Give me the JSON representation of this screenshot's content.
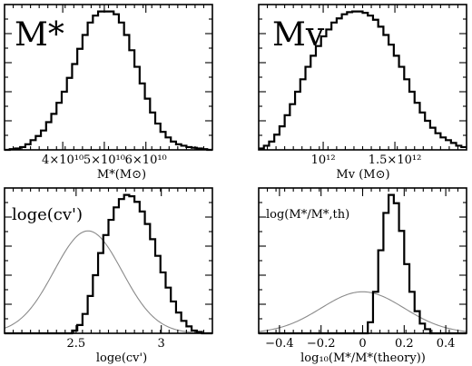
{
  "chart_data": [
    {
      "type": "histogram",
      "title": "M*",
      "xlabel": "M*(M⊙)",
      "xlim": [
        26000000000.0,
        76000000000.0
      ],
      "ylim": [
        0,
        1.05
      ],
      "xtick_values": [
        40000000000.0,
        50000000000.0,
        60000000000.0
      ],
      "xtick_labels": [
        "4×10¹⁰",
        "5×10¹⁰",
        "6×10¹⁰"
      ],
      "bins": {
        "start": 26000000000.0,
        "width": 1250000000.0,
        "heights": [
          0.0,
          0.005,
          0.01,
          0.02,
          0.04,
          0.07,
          0.1,
          0.14,
          0.2,
          0.26,
          0.34,
          0.42,
          0.52,
          0.62,
          0.73,
          0.83,
          0.92,
          0.97,
          1.0,
          1.0,
          1.0,
          0.98,
          0.92,
          0.83,
          0.72,
          0.6,
          0.48,
          0.37,
          0.27,
          0.19,
          0.13,
          0.09,
          0.06,
          0.04,
          0.03,
          0.02,
          0.015,
          0.01,
          0.005,
          0.0
        ]
      }
    },
    {
      "type": "histogram",
      "title": "Mv",
      "xlabel": "Mv (M⊙)",
      "xlim": [
        550000000000.0,
        2000000000000.0
      ],
      "ylim": [
        0,
        1.05
      ],
      "xtick_values": [
        1000000000000.0,
        1500000000000.0
      ],
      "xtick_labels": [
        "10¹²",
        "1.5×10¹²"
      ],
      "bins": {
        "start": 550000000000.0,
        "width": 36250000000.0,
        "heights": [
          0.01,
          0.03,
          0.06,
          0.11,
          0.17,
          0.25,
          0.33,
          0.42,
          0.51,
          0.6,
          0.68,
          0.75,
          0.82,
          0.87,
          0.92,
          0.95,
          0.98,
          0.995,
          1.0,
          1.0,
          0.99,
          0.97,
          0.94,
          0.89,
          0.83,
          0.76,
          0.68,
          0.6,
          0.51,
          0.42,
          0.34,
          0.27,
          0.21,
          0.16,
          0.12,
          0.09,
          0.07,
          0.05,
          0.03,
          0.02
        ]
      }
    },
    {
      "type": "histogram",
      "title": "loge(cv')",
      "xlabel": "loge(cv')",
      "xlim": [
        2.08,
        3.3
      ],
      "ylim": [
        0,
        1.05
      ],
      "xtick_values": [
        2.5,
        3.0
      ],
      "xtick_labels": [
        "2.5",
        "3"
      ],
      "bins": {
        "start": 2.08,
        "width": 0.0305,
        "heights": [
          0.0,
          0.0,
          0.0,
          0.0,
          0.0,
          0.0,
          0.0,
          0.0,
          0.0,
          0.0,
          0.0,
          0.0,
          0.0,
          0.02,
          0.06,
          0.14,
          0.27,
          0.42,
          0.58,
          0.71,
          0.82,
          0.91,
          0.97,
          1.0,
          0.99,
          0.95,
          0.88,
          0.79,
          0.68,
          0.56,
          0.44,
          0.33,
          0.23,
          0.15,
          0.09,
          0.05,
          0.02,
          0.01,
          0.0,
          0.0
        ]
      },
      "gaussian": {
        "mean": 2.57,
        "sigma": 0.2,
        "peak": 0.74
      }
    },
    {
      "type": "histogram",
      "title": "log(M*/M*,th)",
      "xlabel": "log₁₀(M*/M*(theory))",
      "xlim": [
        -0.5,
        0.5
      ],
      "ylim": [
        0,
        1.05
      ],
      "xtick_values": [
        -0.4,
        -0.2,
        0.0,
        0.2,
        0.4
      ],
      "xtick_labels": [
        "−0.4",
        "−0.2",
        "0",
        "0.2",
        "0.4"
      ],
      "bins": {
        "start": -0.5,
        "width": 0.025,
        "heights": [
          0,
          0,
          0,
          0,
          0,
          0,
          0,
          0,
          0,
          0,
          0,
          0,
          0,
          0,
          0,
          0,
          0,
          0,
          0,
          0,
          0,
          0.08,
          0.3,
          0.6,
          0.87,
          1.0,
          0.94,
          0.74,
          0.5,
          0.3,
          0.16,
          0.07,
          0.03,
          0,
          0,
          0,
          0,
          0,
          0,
          0
        ]
      },
      "gaussian": {
        "mean": 0.0,
        "sigma": 0.2,
        "peak": 0.3
      }
    }
  ]
}
